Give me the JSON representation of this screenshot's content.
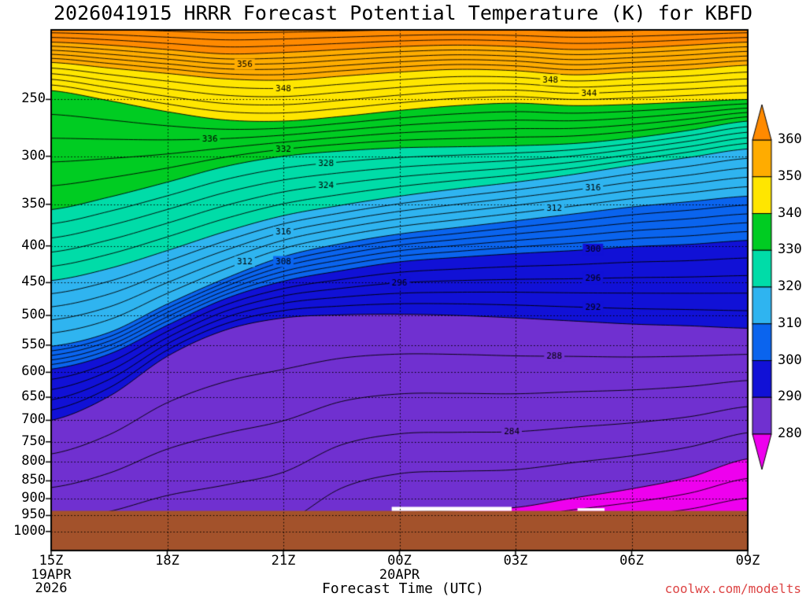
{
  "watermark": {
    "text": "coolwx.com/modelts",
    "color": "#DD4444"
  },
  "chart_data": {
    "type": "heatmap",
    "subtype": "filled-contour-time-height-cross-section",
    "title": "2026041915 HRRR Forecast Potential Temperature (K) for KBFD",
    "xlabel": "Forecast Time (UTC)",
    "ylabel": "",
    "units": "K",
    "contour_interval": 2,
    "fill_interval": 10,
    "y_scale": "log-pressure",
    "p_range": [
      200,
      1063
    ],
    "y_ticks": [
      250,
      300,
      350,
      400,
      450,
      500,
      550,
      600,
      650,
      700,
      750,
      800,
      850,
      900,
      950,
      1000
    ],
    "x_ticks": [
      {
        "label": "15Z",
        "t": 0
      },
      {
        "label": "18Z",
        "t": 3
      },
      {
        "label": "21Z",
        "t": 6
      },
      {
        "label": "00Z",
        "t": 9
      },
      {
        "label": "03Z",
        "t": 12
      },
      {
        "label": "06Z",
        "t": 15
      },
      {
        "label": "09Z",
        "t": 18
      }
    ],
    "date_labels": [
      {
        "t": 0,
        "lines": [
          "19APR",
          "2026"
        ]
      },
      {
        "t": 9,
        "lines": [
          "20APR"
        ]
      }
    ],
    "t_hours": [
      0,
      1.5,
      3,
      4.5,
      6,
      7.5,
      9,
      10.5,
      12,
      13.5,
      15,
      16.5,
      18
    ],
    "boundaries": [
      {
        "level": 280,
        "pressures": [
          1200,
          1200,
          1200,
          1200,
          1150,
          1000,
          944,
          934,
          926,
          898,
          872,
          840,
          792
        ]
      },
      {
        "level": 290,
        "pressures": [
          700,
          648,
          570,
          524,
          504,
          499,
          498,
          500,
          504,
          509,
          514,
          517,
          521
        ]
      },
      {
        "level": 300,
        "pressures": [
          594,
          566,
          516,
          474,
          448,
          433,
          421,
          415,
          410,
          406,
          401,
          398,
          393
        ]
      },
      {
        "level": 310,
        "pressures": [
          552,
          528,
          482,
          444,
          414,
          397,
          385,
          377,
          369,
          361,
          353,
          347,
          341
        ]
      },
      {
        "level": 320,
        "pressures": [
          447,
          430,
          406,
          382,
          363,
          351,
          341,
          333,
          326,
          318,
          309,
          301,
          293
        ]
      },
      {
        "level": 330,
        "pressures": [
          356,
          342,
          326,
          310,
          300,
          295,
          292,
          291,
          290,
          288,
          283,
          276,
          268
        ]
      },
      {
        "level": 340,
        "pressures": [
          243,
          251,
          260,
          267,
          268,
          264,
          259,
          255,
          253,
          255,
          254,
          252,
          250
        ]
      },
      {
        "level": 350,
        "pressures": [
          222,
          226,
          230,
          234,
          235,
          232,
          229,
          227,
          228,
          231,
          229,
          227,
          224
        ]
      },
      {
        "level": 360,
        "pressures": [
          208,
          210,
          213,
          216,
          215,
          213,
          211,
          210,
          211,
          213,
          212,
          210,
          208
        ]
      }
    ],
    "bands": [
      {
        "max": 280,
        "color": "#EE00EE"
      },
      {
        "min": 280,
        "max": 290,
        "color": "#7030D0"
      },
      {
        "min": 290,
        "max": 300,
        "color": "#1111D6"
      },
      {
        "min": 300,
        "max": 310,
        "color": "#0A64EE"
      },
      {
        "min": 310,
        "max": 320,
        "color": "#2FB4F0"
      },
      {
        "min": 320,
        "max": 330,
        "color": "#00DCA8"
      },
      {
        "min": 330,
        "max": 340,
        "color": "#00CC22"
      },
      {
        "min": 340,
        "max": 350,
        "color": "#FFE600"
      },
      {
        "min": 350,
        "max": 360,
        "color": "#FFAC00"
      },
      {
        "min": 360,
        "color": "#FF8A00"
      }
    ],
    "terrain": {
      "top_pressure": 936,
      "color": "#A3522B"
    },
    "white_gaps": [
      {
        "t0": 8.8,
        "t1": 11.9,
        "p0": 924,
        "p1": 936
      },
      {
        "t0": 13.6,
        "t1": 14.3,
        "p0": 928,
        "p1": 936
      }
    ],
    "contour_labels": [
      {
        "v": 356,
        "t": 5.0
      },
      {
        "v": 348,
        "t": 6.0
      },
      {
        "v": 348,
        "t": 12.9
      },
      {
        "v": 344,
        "t": 13.9
      },
      {
        "v": 336,
        "t": 4.1
      },
      {
        "v": 332,
        "t": 6.0
      },
      {
        "v": 328,
        "t": 7.1
      },
      {
        "v": 324,
        "t": 7.1
      },
      {
        "v": 316,
        "t": 14.0
      },
      {
        "v": 312,
        "t": 13.0
      },
      {
        "v": 316,
        "t": 6.0
      },
      {
        "v": 312,
        "t": 5.0
      },
      {
        "v": 308,
        "t": 6.0
      },
      {
        "v": 300,
        "t": 14.0
      },
      {
        "v": 296,
        "t": 9.0
      },
      {
        "v": 296,
        "t": 14.0
      },
      {
        "v": 292,
        "t": 14.0
      },
      {
        "v": 288,
        "t": 13.0
      },
      {
        "v": 284,
        "t": 11.9
      }
    ],
    "colorbar": {
      "levels": [
        360,
        350,
        340,
        330,
        320,
        310,
        300,
        290,
        280
      ]
    }
  }
}
